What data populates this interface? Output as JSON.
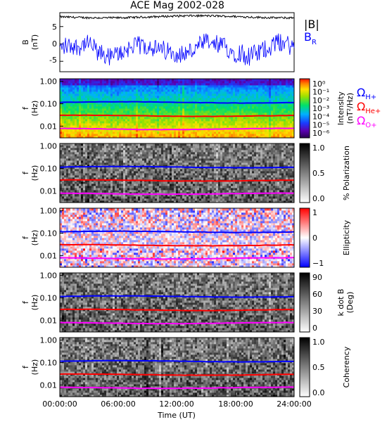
{
  "chart_data": {
    "title": "ACE Mag 2002-028",
    "type": "multi-panel",
    "xlabel": "Time (UT)",
    "xticks": [
      "00:00:00",
      "06:00:00",
      "12:00:00",
      "18:00:00",
      "24:00:00"
    ],
    "xlim_hours": [
      0,
      24
    ],
    "freq_yticks": [
      "1.00",
      "0.10",
      "0.01"
    ],
    "freq_ylim_hz": [
      0.003,
      1.3
    ],
    "gyrofrequency_lines": [
      {
        "label": "Ω",
        "sub": "H+",
        "color": "#0000ff",
        "f_hz": 0.115
      },
      {
        "label": "Ω",
        "sub": "He+",
        "color": "#ff0000",
        "f_hz": 0.029
      },
      {
        "label": "Ω",
        "sub": "O+",
        "color": "#ff00ff",
        "f_hz": 0.0075
      }
    ],
    "panels": [
      {
        "type": "line",
        "ylabel_1": "B",
        "ylabel_2": "(nT)",
        "ylim": [
          -8,
          9
        ],
        "yticks": [
          "5",
          "0",
          "-5"
        ],
        "series": [
          {
            "name": "|B|",
            "color": "#000000",
            "level_nT": 7.8
          },
          {
            "name": "B",
            "sub": "R",
            "color": "#0000ff",
            "mean_nT": -1.5,
            "range_nT": [
              -7,
              4.5
            ]
          }
        ]
      },
      {
        "type": "heatmap",
        "cbar_label_1": "Intensity",
        "cbar_label_2": "(nT²/Hz)",
        "cbar_ticks": [
          "10⁰",
          "10⁻¹",
          "10⁻²",
          "10⁻³",
          "10⁻⁴",
          "10⁻⁵",
          "10⁻⁶"
        ],
        "cbar_range_log10": [
          -6.5,
          0.5
        ]
      },
      {
        "type": "heatmap",
        "cbar_label_1": "% Polarization",
        "cbar_ticks": [
          "1.0",
          "0.5",
          "0.0"
        ],
        "cbar_range": [
          0,
          1
        ]
      },
      {
        "type": "heatmap",
        "cbar_label_1": "Ellipticity",
        "cbar_ticks": [
          "1",
          "0",
          "−1"
        ],
        "cbar_range": [
          -1,
          1
        ]
      },
      {
        "type": "heatmap",
        "cbar_label_1": "k dot B",
        "cbar_label_2": "(Deg)",
        "cbar_ticks": [
          "90",
          "60",
          "30",
          "0"
        ],
        "cbar_range": [
          0,
          90
        ]
      },
      {
        "type": "heatmap",
        "cbar_label_1": "Coherency",
        "cbar_ticks": [
          "1.0",
          "0.5",
          "0.0"
        ],
        "cbar_range": [
          0,
          1
        ]
      }
    ]
  }
}
